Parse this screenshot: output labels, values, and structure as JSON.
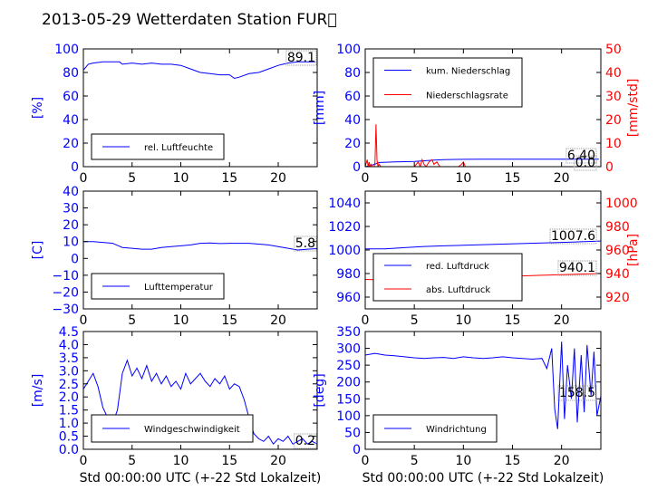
{
  "title": "2013-05-29 Wetterdaten Station FUR\u0000",
  "chart_data": [
    {
      "type": "line",
      "id": "humidity",
      "xlabel": "",
      "ylabel": "[%]",
      "xlim": [
        0,
        24
      ],
      "ylim": [
        0,
        100
      ],
      "xticks": [
        "0",
        "5",
        "10",
        "15",
        "20"
      ],
      "yticks": [
        "0",
        "20",
        "40",
        "60",
        "80",
        "100"
      ],
      "legend": "bottom-left",
      "annotation": "89.1",
      "series": [
        {
          "name": "rel. Luftfeuchte",
          "color": "#0000ff",
          "x": [
            0,
            0.5,
            1,
            2,
            3,
            3.7,
            4,
            5,
            6,
            7,
            8,
            9,
            10,
            11,
            12,
            13,
            14,
            15,
            15.5,
            16,
            17,
            18,
            19,
            20,
            20.5,
            21,
            22,
            23,
            23.8
          ],
          "y": [
            82,
            87,
            88,
            89,
            89,
            89,
            87,
            88,
            87,
            88,
            87,
            87,
            86,
            83,
            80,
            79,
            78,
            78,
            75,
            76,
            79,
            80,
            83,
            86,
            87,
            88,
            89,
            89,
            89
          ]
        }
      ]
    },
    {
      "type": "line",
      "id": "precip",
      "xlabel": "",
      "ylabel": "[mm]",
      "ylabel2": "[mm/std]",
      "xlim": [
        0,
        24
      ],
      "ylim": [
        0,
        100
      ],
      "ylim2": [
        0,
        50
      ],
      "xticks": [
        "0",
        "5",
        "10",
        "15",
        "20"
      ],
      "yticks": [
        "0",
        "20",
        "40",
        "60",
        "80",
        "100"
      ],
      "yticks2": [
        "0",
        "10",
        "20",
        "30",
        "40",
        "50"
      ],
      "legend": "top-left",
      "annotations": [
        "6.40",
        "0.0"
      ],
      "series": [
        {
          "name": "kum. Niederschlag",
          "color": "#0000ff",
          "axis": "left",
          "x": [
            0,
            0.5,
            1,
            1.2,
            1.5,
            3,
            5,
            6,
            7,
            8,
            10,
            12,
            15,
            18,
            20,
            23.8
          ],
          "y": [
            0,
            1,
            2,
            3,
            3.5,
            4,
            4.5,
            5,
            5.5,
            6,
            6.2,
            6.3,
            6.4,
            6.4,
            6.4,
            6.4
          ]
        },
        {
          "name": "Niederschlagsrate",
          "color": "#ff0000",
          "axis": "right",
          "x": [
            0,
            0.2,
            0.3,
            0.4,
            0.5,
            0.6,
            0.7,
            0.8,
            0.9,
            1.0,
            1.1,
            1.2,
            1.3,
            1.4,
            1.6,
            2,
            3,
            5,
            5.4,
            5.6,
            5.8,
            6.0,
            6.2,
            6.5,
            6.8,
            7.0,
            7.3,
            7.6,
            8,
            9.5,
            9.8,
            10,
            10.2,
            10.5,
            12,
            24
          ],
          "y": [
            0,
            3,
            0,
            2,
            0,
            1,
            0,
            0,
            0,
            2,
            18,
            3,
            0,
            1,
            0,
            0,
            0,
            0,
            2,
            0,
            3,
            1,
            0,
            2,
            3,
            1,
            2,
            0,
            0,
            0,
            1,
            2,
            0,
            0,
            0,
            0
          ]
        }
      ]
    },
    {
      "type": "line",
      "id": "temperature",
      "xlabel": "",
      "ylabel": "[C]",
      "xlim": [
        0,
        24
      ],
      "ylim": [
        -30,
        40
      ],
      "xticks": [
        "0",
        "5",
        "10",
        "15",
        "20"
      ],
      "yticks": [
        "−30",
        "−20",
        "−10",
        "0",
        "10",
        "20",
        "30",
        "40"
      ],
      "legend": "bottom-left",
      "annotation": "5.8",
      "series": [
        {
          "name": "Lufttemperatur",
          "color": "#0000ff",
          "x": [
            0,
            1,
            2,
            3,
            4,
            5,
            6,
            7,
            8,
            9,
            10,
            11,
            12,
            13,
            14,
            15,
            16,
            17,
            18,
            19,
            20,
            21,
            22,
            23,
            24
          ],
          "y": [
            10,
            10,
            9.5,
            9,
            6.5,
            6,
            5.5,
            5.5,
            6.5,
            7,
            7.5,
            8,
            9,
            9.2,
            8.8,
            9,
            9,
            9,
            8.5,
            8,
            7,
            6,
            5,
            5.5,
            5.8
          ]
        }
      ]
    },
    {
      "type": "line",
      "id": "pressure",
      "xlabel": "",
      "ylabel": "",
      "ylabel2": "[hPa]",
      "xlim": [
        0,
        24
      ],
      "ylim": [
        950,
        1050
      ],
      "ylim2": [
        910,
        1010
      ],
      "xticks": [
        "0",
        "5",
        "10",
        "15",
        "20"
      ],
      "yticks": [
        "960",
        "980",
        "1000",
        "1020",
        "1040"
      ],
      "yticks2": [
        "920",
        "940",
        "960",
        "980",
        "1000"
      ],
      "legend": "bottom-left",
      "annotations": [
        "1007.6",
        "940.1"
      ],
      "series": [
        {
          "name": "red. Luftdruck",
          "color": "#0000ff",
          "axis": "left",
          "x": [
            0,
            2,
            4,
            6,
            8,
            10,
            12,
            14,
            16,
            18,
            20,
            22,
            24
          ],
          "y": [
            1001,
            1001,
            1002,
            1003,
            1003.5,
            1004,
            1004.5,
            1005,
            1005.5,
            1006,
            1006.5,
            1007,
            1007.6
          ]
        },
        {
          "name": "abs. Luftdruck",
          "color": "#ff0000",
          "axis": "right",
          "x": [
            0,
            2,
            4,
            6,
            8,
            10,
            12,
            14,
            16,
            18,
            20,
            22,
            24
          ],
          "y": [
            935,
            934.5,
            935,
            935.5,
            936,
            936.5,
            937,
            937.5,
            938,
            938.5,
            939,
            939.5,
            940.1
          ]
        }
      ]
    },
    {
      "type": "line",
      "id": "windspeed",
      "xlabel": "Std 00:00:00 UTC (+-22 Std Lokalzeit)",
      "ylabel": "[m/s]",
      "xlim": [
        0,
        24
      ],
      "ylim": [
        0,
        4.5
      ],
      "xticks": [
        "0",
        "5",
        "10",
        "15",
        "20"
      ],
      "yticks": [
        "0.0",
        "0.5",
        "1.0",
        "1.5",
        "2.0",
        "2.5",
        "3.0",
        "3.5",
        "4.0",
        "4.5"
      ],
      "legend": "bottom-left",
      "annotation": "0.2",
      "series": [
        {
          "name": "Windgeschwindigkeit",
          "color": "#0000ff",
          "x": [
            0,
            0.5,
            1,
            1.5,
            2,
            2.5,
            3,
            3.5,
            4,
            4.5,
            5,
            5.5,
            6,
            6.5,
            7,
            7.5,
            8,
            8.5,
            9,
            9.5,
            10,
            10.5,
            11,
            11.5,
            12,
            12.5,
            13,
            13.5,
            14,
            14.5,
            15,
            15.5,
            16,
            16.5,
            17,
            17.5,
            18,
            18.5,
            19,
            19.5,
            20,
            20.5,
            21,
            21.5,
            22,
            22.5,
            23,
            23.5,
            24
          ],
          "y": [
            2.3,
            2.6,
            2.9,
            2.4,
            1.6,
            1.2,
            1.0,
            1.5,
            2.9,
            3.4,
            2.8,
            3.1,
            2.7,
            3.2,
            2.6,
            2.9,
            2.5,
            2.8,
            2.4,
            2.6,
            2.3,
            2.9,
            2.5,
            2.7,
            2.9,
            2.6,
            2.4,
            2.7,
            2.5,
            2.8,
            2.3,
            2.5,
            2.4,
            1.9,
            1.2,
            0.6,
            0.4,
            0.3,
            0.5,
            0.2,
            0.4,
            0.3,
            0.5,
            0.2,
            0.3,
            0.4,
            0.2,
            0.3,
            0.2
          ]
        }
      ]
    },
    {
      "type": "line",
      "id": "winddir",
      "xlabel": "Std 00:00:00 UTC (+-22 Std Lokalzeit)",
      "ylabel": "[deg]",
      "xlim": [
        0,
        24
      ],
      "ylim": [
        0,
        350
      ],
      "xticks": [
        "0",
        "5",
        "10",
        "15",
        "20"
      ],
      "yticks": [
        "0",
        "50",
        "100",
        "150",
        "200",
        "250",
        "300",
        "350"
      ],
      "legend": "bottom-left",
      "annotation": "158.5",
      "series": [
        {
          "name": "Windrichtung",
          "color": "#0000ff",
          "x": [
            0,
            1,
            2,
            3,
            4,
            5,
            6,
            7,
            8,
            9,
            10,
            11,
            12,
            13,
            14,
            15,
            16,
            17,
            18,
            18.5,
            19,
            19.3,
            19.6,
            20,
            20.3,
            20.6,
            21,
            21.3,
            21.6,
            22,
            22.3,
            22.6,
            23,
            23.3,
            23.6,
            24
          ],
          "y": [
            280,
            285,
            280,
            278,
            275,
            272,
            270,
            272,
            273,
            270,
            275,
            272,
            270,
            272,
            275,
            272,
            270,
            268,
            270,
            240,
            300,
            120,
            60,
            320,
            90,
            250,
            150,
            300,
            80,
            280,
            110,
            310,
            160,
            290,
            100,
            158
          ]
        }
      ]
    }
  ]
}
